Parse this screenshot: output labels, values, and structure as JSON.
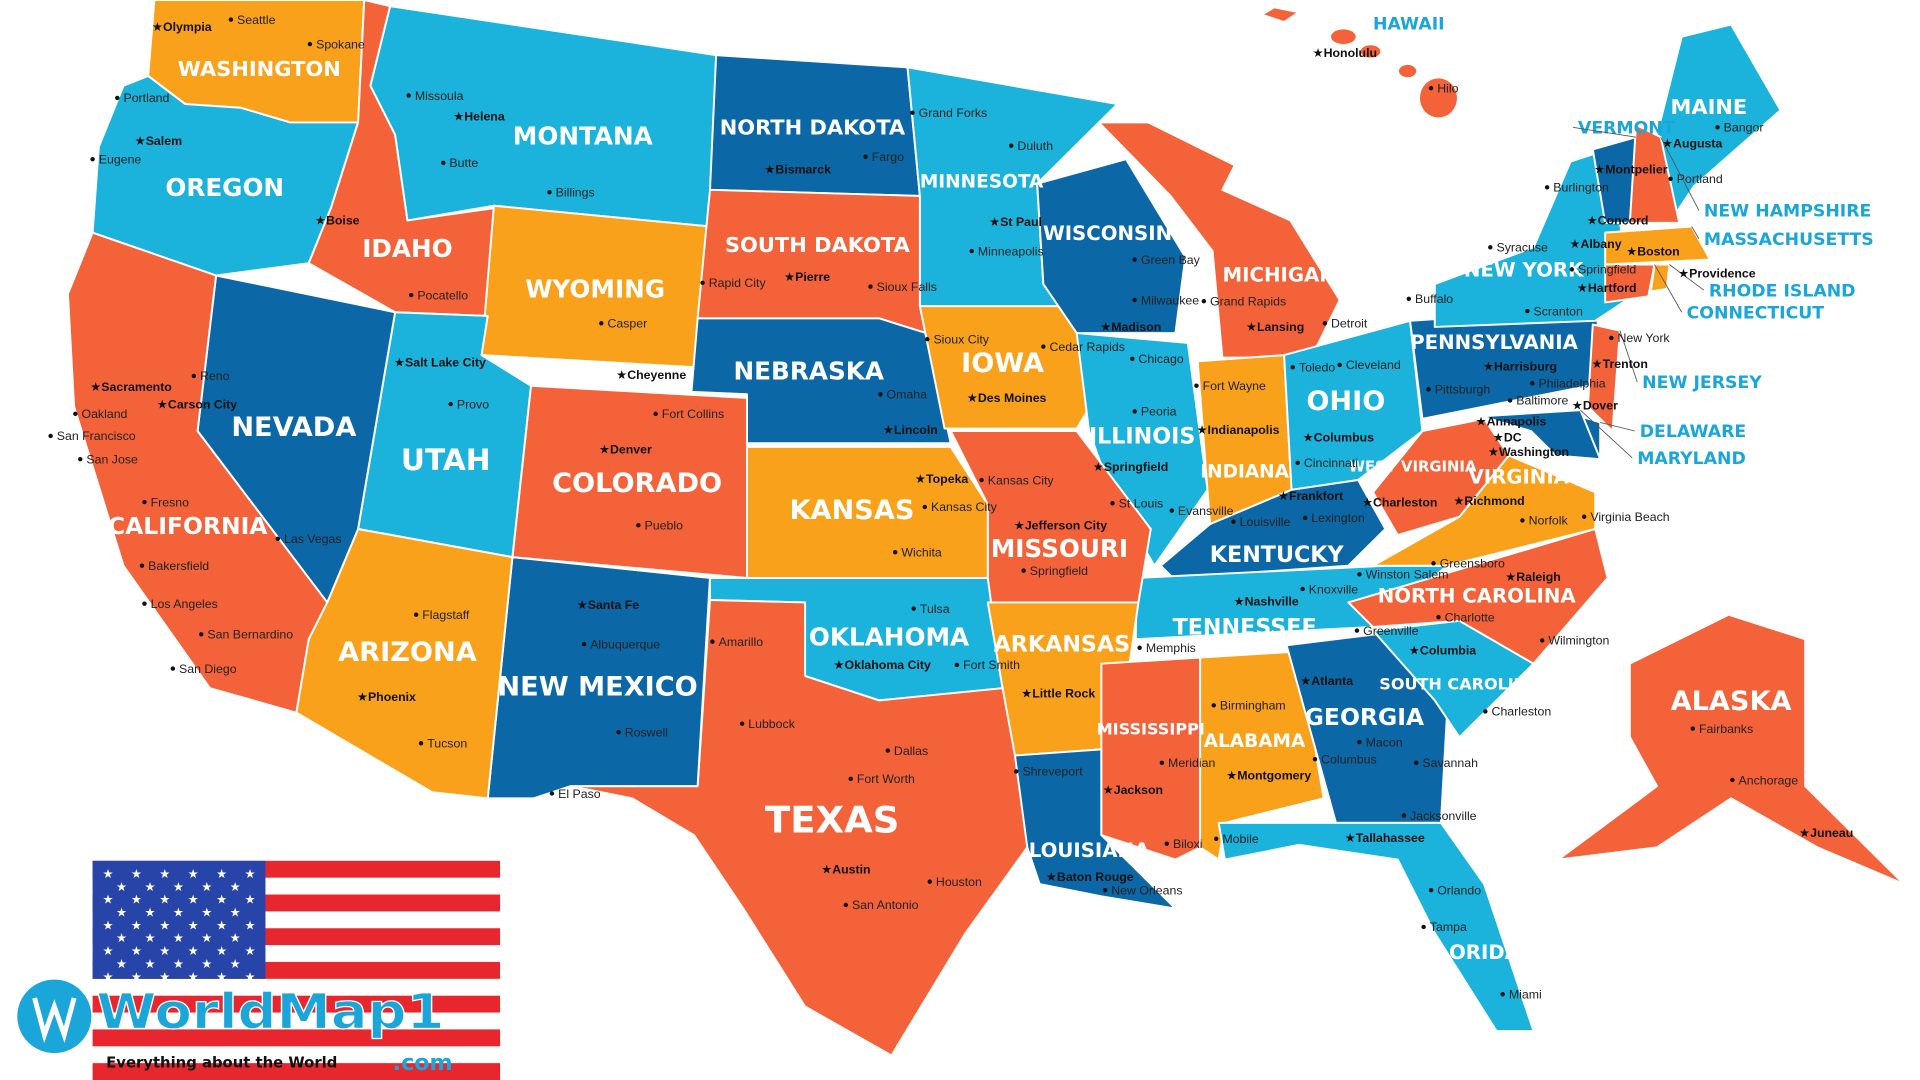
{
  "colors": {
    "orange": "#F4623A",
    "light_blue": "#1BB3DB",
    "dark_blue": "#0B67A6",
    "amber": "#F9A11B",
    "callout": "#1BA6DA"
  },
  "states": [
    {
      "name": "WASHINGTON",
      "color": "amber"
    },
    {
      "name": "OREGON",
      "color": "light_blue"
    },
    {
      "name": "IDAHO",
      "color": "orange"
    },
    {
      "name": "MONTANA",
      "color": "light_blue"
    },
    {
      "name": "WYOMING",
      "color": "amber"
    },
    {
      "name": "NORTH DAKOTA",
      "color": "dark_blue"
    },
    {
      "name": "SOUTH DAKOTA",
      "color": "orange"
    },
    {
      "name": "NEBRASKA",
      "color": "dark_blue"
    },
    {
      "name": "MINNESOTA",
      "color": "light_blue"
    },
    {
      "name": "IOWA",
      "color": "amber"
    },
    {
      "name": "WISCONSIN",
      "color": "dark_blue"
    },
    {
      "name": "MICHIGAN",
      "color": "orange"
    },
    {
      "name": "ILLINOIS",
      "color": "light_blue"
    },
    {
      "name": "INDIANA",
      "color": "amber"
    },
    {
      "name": "OHIO",
      "color": "light_blue"
    },
    {
      "name": "KENTUCKY",
      "color": "dark_blue"
    },
    {
      "name": "TENNESSEE",
      "color": "light_blue"
    },
    {
      "name": "MISSOURI",
      "color": "orange"
    },
    {
      "name": "KANSAS",
      "color": "amber"
    },
    {
      "name": "OKLAHOMA",
      "color": "light_blue"
    },
    {
      "name": "TEXAS",
      "color": "orange"
    },
    {
      "name": "NEW MEXICO",
      "color": "dark_blue"
    },
    {
      "name": "COLORADO",
      "color": "orange"
    },
    {
      "name": "UTAH",
      "color": "light_blue"
    },
    {
      "name": "ARIZONA",
      "color": "amber"
    },
    {
      "name": "NEVADA",
      "color": "dark_blue"
    },
    {
      "name": "CALIFORNIA",
      "color": "orange"
    },
    {
      "name": "ARKANSAS",
      "color": "amber"
    },
    {
      "name": "LOUISIANA",
      "color": "dark_blue"
    },
    {
      "name": "MISSISSIPPI",
      "color": "orange"
    },
    {
      "name": "ALABAMA",
      "color": "amber"
    },
    {
      "name": "GEORGIA",
      "color": "dark_blue"
    },
    {
      "name": "FLORIDA",
      "color": "light_blue"
    },
    {
      "name": "SOUTH CAROLINA",
      "color": "light_blue"
    },
    {
      "name": "NORTH CAROLINA",
      "color": "orange"
    },
    {
      "name": "VIRGINIA",
      "color": "amber"
    },
    {
      "name": "WEST VIRGINIA",
      "color": "orange"
    },
    {
      "name": "PENNSYLVANIA",
      "color": "dark_blue"
    },
    {
      "name": "NEW YORK",
      "color": "light_blue"
    },
    {
      "name": "MAINE",
      "color": "light_blue"
    },
    {
      "name": "ALASKA",
      "color": "orange"
    }
  ],
  "small_states": [
    {
      "name": "VERMONT",
      "color": "dark_blue"
    },
    {
      "name": "NEW HAMPSHIRE",
      "color": "orange"
    },
    {
      "name": "MASSACHUSETTS",
      "color": "amber"
    },
    {
      "name": "CONNECTICUT",
      "color": "orange"
    },
    {
      "name": "RHODE ISLAND",
      "color": "amber"
    },
    {
      "name": "NEW JERSEY",
      "color": "orange"
    },
    {
      "name": "DELAWARE",
      "color": "dark_blue"
    },
    {
      "name": "MARYLAND",
      "color": "dark_blue"
    },
    {
      "name": "HAWAII",
      "color": "orange"
    }
  ],
  "cities": [
    {
      "name": "Seattle"
    },
    {
      "name": "Olympia",
      "capital": true
    },
    {
      "name": "Spokane"
    },
    {
      "name": "Portland"
    },
    {
      "name": "Salem",
      "capital": true
    },
    {
      "name": "Eugene"
    },
    {
      "name": "Missoula"
    },
    {
      "name": "Helena",
      "capital": true
    },
    {
      "name": "Butte"
    },
    {
      "name": "Billings"
    },
    {
      "name": "Boise",
      "capital": true
    },
    {
      "name": "Pocatello"
    },
    {
      "name": "Bismarck",
      "capital": true
    },
    {
      "name": "Fargo"
    },
    {
      "name": "Grand Forks"
    },
    {
      "name": "Duluth"
    },
    {
      "name": "St Paul",
      "capital": true
    },
    {
      "name": "Minneapolis"
    },
    {
      "name": "Pierre",
      "capital": true
    },
    {
      "name": "Rapid City"
    },
    {
      "name": "Sioux Falls"
    },
    {
      "name": "Casper"
    },
    {
      "name": "Cheyenne",
      "capital": true
    },
    {
      "name": "Salt Lake City",
      "capital": true
    },
    {
      "name": "Provo"
    },
    {
      "name": "Reno"
    },
    {
      "name": "Carson City",
      "capital": true
    },
    {
      "name": "Sacramento",
      "capital": true
    },
    {
      "name": "Oakland"
    },
    {
      "name": "San Francisco"
    },
    {
      "name": "San Jose"
    },
    {
      "name": "Fresno"
    },
    {
      "name": "Bakersfield"
    },
    {
      "name": "Los Angeles"
    },
    {
      "name": "San Bernardino"
    },
    {
      "name": "San Diego"
    },
    {
      "name": "Las Vegas"
    },
    {
      "name": "Flagstaff"
    },
    {
      "name": "Phoenix",
      "capital": true
    },
    {
      "name": "Tucson"
    },
    {
      "name": "Denver",
      "capital": true
    },
    {
      "name": "Fort Collins"
    },
    {
      "name": "Pueblo"
    },
    {
      "name": "Santa Fe",
      "capital": true
    },
    {
      "name": "Albuquerque"
    },
    {
      "name": "Roswell"
    },
    {
      "name": "El Paso"
    },
    {
      "name": "Omaha"
    },
    {
      "name": "Lincoln",
      "capital": true
    },
    {
      "name": "Topeka",
      "capital": true
    },
    {
      "name": "Kansas City"
    },
    {
      "name": "Kansas City"
    },
    {
      "name": "Wichita"
    },
    {
      "name": "Jefferson City",
      "capital": true
    },
    {
      "name": "Springfield"
    },
    {
      "name": "St Louis"
    },
    {
      "name": "Tulsa"
    },
    {
      "name": "Oklahoma City",
      "capital": true
    },
    {
      "name": "Amarillo"
    },
    {
      "name": "Lubbock"
    },
    {
      "name": "Dallas"
    },
    {
      "name": "Fort Worth"
    },
    {
      "name": "Austin",
      "capital": true
    },
    {
      "name": "Houston"
    },
    {
      "name": "San Antonio"
    },
    {
      "name": "Fort Smith"
    },
    {
      "name": "Little Rock",
      "capital": true
    },
    {
      "name": "Memphis"
    },
    {
      "name": "Shreveport"
    },
    {
      "name": "Baton Rouge",
      "capital": true
    },
    {
      "name": "New Orleans"
    },
    {
      "name": "Jackson",
      "capital": true
    },
    {
      "name": "Meridian"
    },
    {
      "name": "Biloxi"
    },
    {
      "name": "Mobile"
    },
    {
      "name": "Birmingham"
    },
    {
      "name": "Montgomery",
      "capital": true
    },
    {
      "name": "Atlanta",
      "capital": true
    },
    {
      "name": "Macon"
    },
    {
      "name": "Columbus"
    },
    {
      "name": "Savannah"
    },
    {
      "name": "Tallahassee",
      "capital": true
    },
    {
      "name": "Jacksonville"
    },
    {
      "name": "Orlando"
    },
    {
      "name": "Tampa"
    },
    {
      "name": "Miami"
    },
    {
      "name": "Cedar Rapids"
    },
    {
      "name": "Sioux City"
    },
    {
      "name": "Des Moines",
      "capital": true
    },
    {
      "name": "Chicago"
    },
    {
      "name": "Peoria"
    },
    {
      "name": "Springfield",
      "capital": true
    },
    {
      "name": "Green Bay"
    },
    {
      "name": "Milwaukee"
    },
    {
      "name": "Madison",
      "capital": true
    },
    {
      "name": "Grand Rapids"
    },
    {
      "name": "Lansing",
      "capital": true
    },
    {
      "name": "Detroit"
    },
    {
      "name": "Fort Wayne"
    },
    {
      "name": "Indianapolis",
      "capital": true
    },
    {
      "name": "Evansville"
    },
    {
      "name": "Louisville"
    },
    {
      "name": "Frankfort",
      "capital": true
    },
    {
      "name": "Lexington"
    },
    {
      "name": "Cincinnati"
    },
    {
      "name": "Columbus",
      "capital": true
    },
    {
      "name": "Toledo"
    },
    {
      "name": "Cleveland"
    },
    {
      "name": "Nashville",
      "capital": true
    },
    {
      "name": "Knoxville"
    },
    {
      "name": "Winston Salem"
    },
    {
      "name": "Greensboro"
    },
    {
      "name": "Raleigh",
      "capital": true
    },
    {
      "name": "Charlotte"
    },
    {
      "name": "Wilmington"
    },
    {
      "name": "Greenville"
    },
    {
      "name": "Columbia",
      "capital": true
    },
    {
      "name": "Charleston"
    },
    {
      "name": "Charleston",
      "capital": true
    },
    {
      "name": "Richmond",
      "capital": true
    },
    {
      "name": "Norfolk"
    },
    {
      "name": "Virginia Beach"
    },
    {
      "name": "Washington",
      "capital": true
    },
    {
      "name": "Annapolis",
      "capital": true
    },
    {
      "name": "Baltimore"
    },
    {
      "name": "DC",
      "capital": true
    },
    {
      "name": "Dover",
      "capital": true
    },
    {
      "name": "Philadelphia"
    },
    {
      "name": "Trenton",
      "capital": true
    },
    {
      "name": "Harrisburg",
      "capital": true
    },
    {
      "name": "Pittsburgh"
    },
    {
      "name": "Scranton"
    },
    {
      "name": "New York"
    },
    {
      "name": "Buffalo"
    },
    {
      "name": "Syracuse"
    },
    {
      "name": "Albany",
      "capital": true
    },
    {
      "name": "Burlington"
    },
    {
      "name": "Montpelier",
      "capital": true
    },
    {
      "name": "Concord",
      "capital": true
    },
    {
      "name": "Augusta",
      "capital": true
    },
    {
      "name": "Bangor"
    },
    {
      "name": "Portland"
    },
    {
      "name": "Boston",
      "capital": true
    },
    {
      "name": "Springfield"
    },
    {
      "name": "Hartford",
      "capital": true
    },
    {
      "name": "Providence",
      "capital": true
    },
    {
      "name": "Honolulu",
      "capital": true
    },
    {
      "name": "Hilo"
    },
    {
      "name": "Fairbanks"
    },
    {
      "name": "Anchorage"
    },
    {
      "name": "Juneau",
      "capital": true
    }
  ],
  "logo": {
    "name": "WorldMap1",
    "suffix": ".com",
    "tagline": "Everything about the World"
  }
}
